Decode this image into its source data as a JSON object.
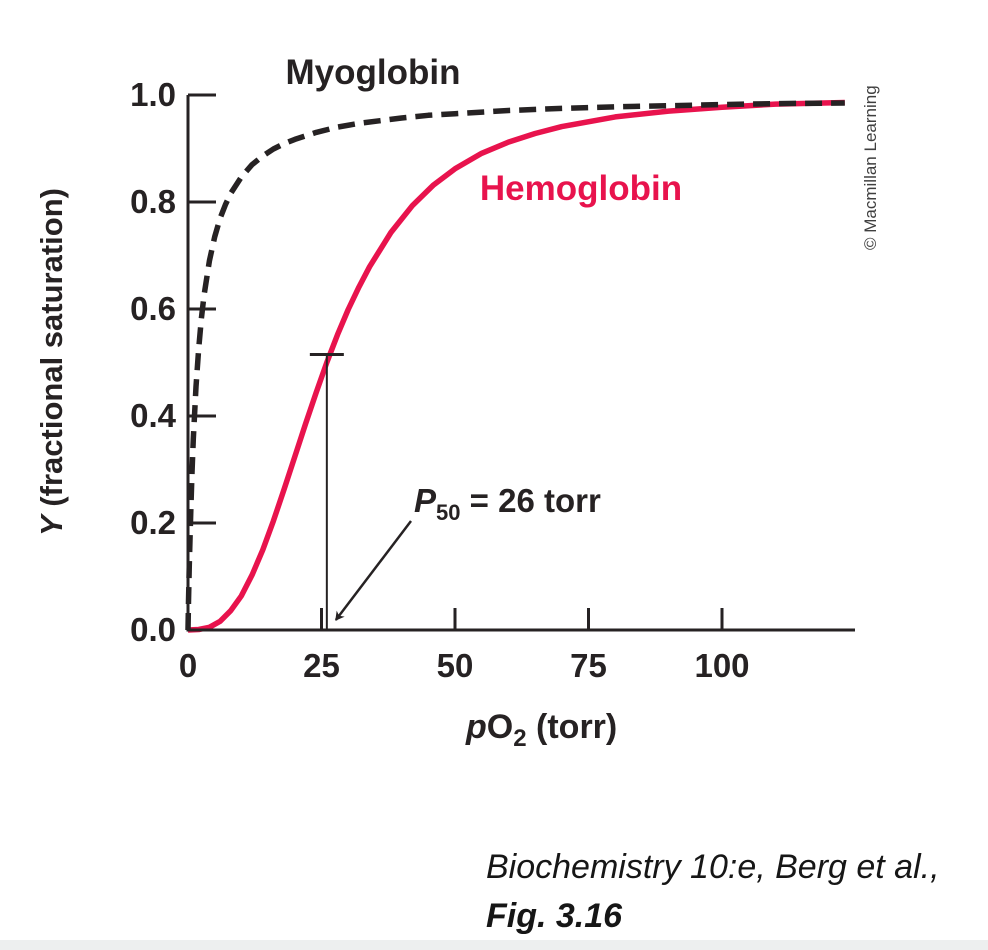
{
  "figure": {
    "copyright": "© Macmillan Learning",
    "colors": {
      "ink_black": "#262223",
      "hemoglobin_red": "#e8134d",
      "copyright_gray": "#3f3f3f",
      "background": "#ffffff"
    }
  },
  "chart_data": {
    "type": "line",
    "title": "",
    "xlabel": "pO2 (torr)",
    "xlabel_parts": {
      "italic": "p",
      "base": "O",
      "sub": "2",
      "rest": " (torr)"
    },
    "ylabel": "Y (fractional saturation)",
    "ylabel_parts": {
      "italic": "Y",
      "rest": " (fractional saturation)"
    },
    "xlim": [
      0,
      125
    ],
    "ylim": [
      0,
      1.0
    ],
    "x_ticks": [
      "0",
      "25",
      "50",
      "75",
      "100"
    ],
    "y_ticks": [
      "0.0",
      "0.2",
      "0.4",
      "0.6",
      "0.8",
      "1.0"
    ],
    "grid": false,
    "legend": "inline-curve-labels",
    "series": [
      {
        "name": "Hemoglobin",
        "line_style": "solid",
        "color": "#e8134d",
        "model": "sigmoidal (Hill, n ≈ 2.8, P50 = 26 torr)",
        "points": [
          [
            0,
            0
          ],
          [
            2,
            0.001
          ],
          [
            4,
            0.005
          ],
          [
            6,
            0.016
          ],
          [
            8,
            0.036
          ],
          [
            10,
            0.064
          ],
          [
            12,
            0.103
          ],
          [
            14,
            0.15
          ],
          [
            16,
            0.204
          ],
          [
            18,
            0.263
          ],
          [
            20,
            0.324
          ],
          [
            22,
            0.385
          ],
          [
            24,
            0.444
          ],
          [
            26,
            0.5
          ],
          [
            28,
            0.552
          ],
          [
            30,
            0.599
          ],
          [
            32,
            0.641
          ],
          [
            34,
            0.679
          ],
          [
            38,
            0.743
          ],
          [
            42,
            0.793
          ],
          [
            46,
            0.832
          ],
          [
            50,
            0.862
          ],
          [
            55,
            0.891
          ],
          [
            60,
            0.912
          ],
          [
            65,
            0.928
          ],
          [
            70,
            0.941
          ],
          [
            80,
            0.959
          ],
          [
            90,
            0.97
          ],
          [
            100,
            0.977
          ],
          [
            110,
            0.983
          ],
          [
            123,
            0.986
          ]
        ]
      },
      {
        "name": "Myoglobin",
        "line_style": "dashed",
        "color": "#262223",
        "model": "hyperbolic (K ≈ 1.8 torr)",
        "points": [
          [
            0,
            0
          ],
          [
            0.1,
            0.053
          ],
          [
            0.25,
            0.122
          ],
          [
            0.5,
            0.217
          ],
          [
            0.75,
            0.294
          ],
          [
            1,
            0.357
          ],
          [
            1.5,
            0.455
          ],
          [
            2,
            0.526
          ],
          [
            2.5,
            0.581
          ],
          [
            3,
            0.625
          ],
          [
            4,
            0.69
          ],
          [
            5,
            0.735
          ],
          [
            6,
            0.769
          ],
          [
            7,
            0.795
          ],
          [
            8,
            0.816
          ],
          [
            10,
            0.847
          ],
          [
            12,
            0.87
          ],
          [
            14,
            0.886
          ],
          [
            16,
            0.899
          ],
          [
            18,
            0.909
          ],
          [
            20,
            0.917
          ],
          [
            24,
            0.93
          ],
          [
            28,
            0.94
          ],
          [
            32,
            0.947
          ],
          [
            36,
            0.952
          ],
          [
            40,
            0.957
          ],
          [
            45,
            0.962
          ],
          [
            50,
            0.965
          ],
          [
            60,
            0.971
          ],
          [
            70,
            0.975
          ],
          [
            80,
            0.978
          ],
          [
            90,
            0.98
          ],
          [
            100,
            0.982
          ],
          [
            110,
            0.984
          ],
          [
            123,
            0.985
          ]
        ]
      }
    ],
    "annotation": {
      "text": "P50 = 26 torr",
      "label_parts": {
        "italic": "P",
        "sub": "50",
        "rest": " = 26 torr"
      },
      "x_torr": 26,
      "y_fraction": 0.5
    }
  },
  "caption": {
    "line1": "Biochemistry 10:e, Berg et al.,",
    "line2": "Fig. 3.16"
  }
}
